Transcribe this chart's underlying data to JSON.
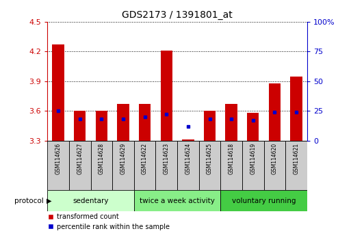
{
  "title": "GDS2173 / 1391801_at",
  "samples": [
    "GSM114626",
    "GSM114627",
    "GSM114628",
    "GSM114629",
    "GSM114622",
    "GSM114623",
    "GSM114624",
    "GSM114625",
    "GSM114618",
    "GSM114619",
    "GSM114620",
    "GSM114621"
  ],
  "red_values": [
    4.27,
    3.6,
    3.6,
    3.67,
    3.67,
    4.21,
    3.31,
    3.6,
    3.67,
    3.58,
    3.88,
    3.95
  ],
  "blue_values": [
    25,
    18,
    18,
    18,
    20,
    22,
    12,
    18,
    18,
    17,
    24,
    24
  ],
  "baseline": 3.3,
  "ylim_left": [
    3.3,
    4.5
  ],
  "ylim_right": [
    0,
    100
  ],
  "left_ticks": [
    3.3,
    3.6,
    3.9,
    4.2,
    4.5
  ],
  "right_ticks": [
    0,
    25,
    50,
    75,
    100
  ],
  "right_tick_labels": [
    "0",
    "25",
    "50",
    "75",
    "100%"
  ],
  "left_color": "#cc0000",
  "right_color": "#0000cc",
  "bar_color": "#cc0000",
  "blue_color": "#0000cc",
  "groups": [
    {
      "label": "sedentary",
      "start": 0,
      "end": 4,
      "color": "#ccffcc"
    },
    {
      "label": "twice a week activity",
      "start": 4,
      "end": 8,
      "color": "#88ee88"
    },
    {
      "label": "voluntary running",
      "start": 8,
      "end": 12,
      "color": "#44cc44"
    }
  ],
  "sample_box_color": "#cccccc",
  "protocol_label": "protocol",
  "legend_red": "transformed count",
  "legend_blue": "percentile rank within the sample",
  "title_fontsize": 10,
  "bar_width": 0.55,
  "grid_linestyle": ":"
}
